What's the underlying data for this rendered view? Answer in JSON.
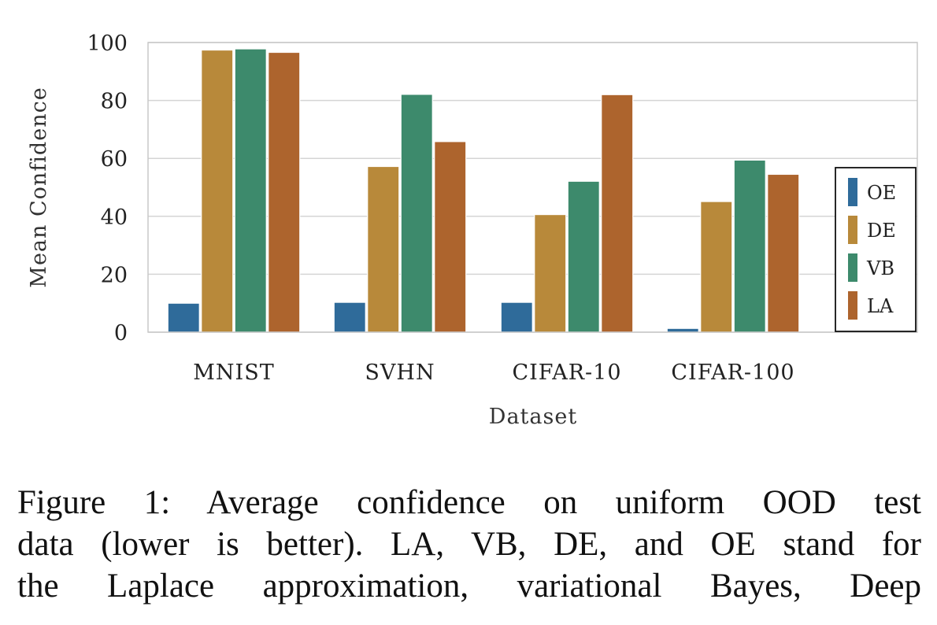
{
  "chart_data": {
    "type": "bar",
    "xlabel": "Dataset",
    "ylabel": "Mean Confidence",
    "categories": [
      "MNIST",
      "SVHN",
      "CIFAR-10",
      "CIFAR-100"
    ],
    "ylim": [
      0,
      100
    ],
    "yticks": [
      0,
      20,
      40,
      60,
      80,
      100
    ],
    "grid": true,
    "legend_position": "right",
    "series": [
      {
        "name": "OE",
        "color": "#2f6b9a",
        "values": [
          10,
          10.3,
          10.3,
          1.3
        ]
      },
      {
        "name": "DE",
        "color": "#b8893a",
        "values": [
          97.4,
          57.2,
          40.6,
          45.1
        ]
      },
      {
        "name": "VB",
        "color": "#3d8a6c",
        "values": [
          97.8,
          82.1,
          52.1,
          59.4
        ]
      },
      {
        "name": "LA",
        "color": "#ad642d",
        "values": [
          96.6,
          65.8,
          82,
          54.5
        ]
      }
    ]
  },
  "caption": {
    "lines": [
      "Figure 1:  Average confidence on uniform OOD test",
      "data (lower is better). LA, VB, DE, and OE stand for",
      "the Laplace approximation, variational Bayes, Deep"
    ]
  }
}
